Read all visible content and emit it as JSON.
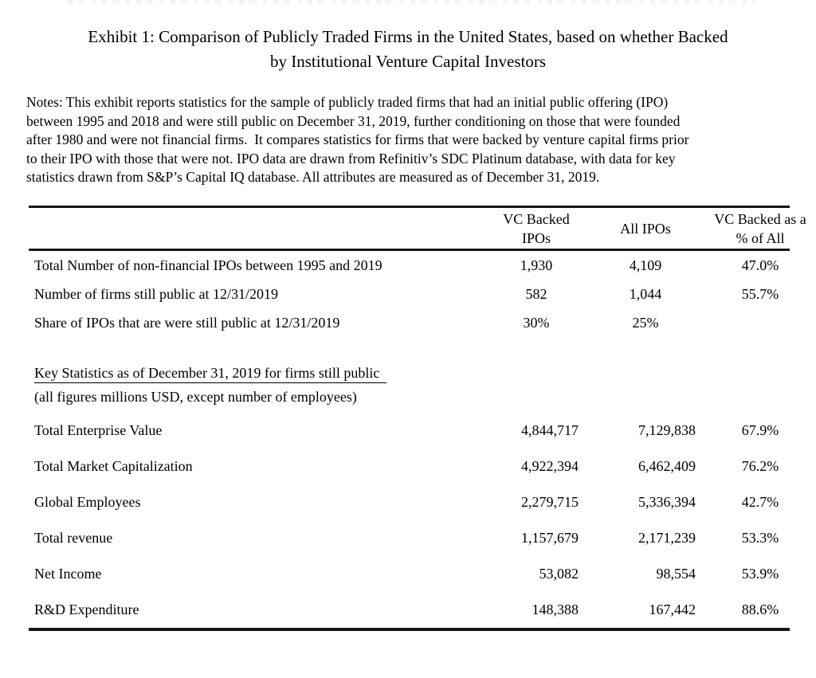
{
  "colors": {
    "text": "#000000",
    "rule": "#161616",
    "background": "#ffffff"
  },
  "page": {
    "title_line1": "Exhibit 1: Comparison of Publicly Traded Firms in the United States, based on whether Backed",
    "title_line2": "by Institutional Venture Capital Investors"
  },
  "notes": {
    "lines": [
      "Notes: This exhibit reports statistics for the sample of publicly traded firms that had an initial public offering (IPO)",
      "between 1995 and 2018 and were still public on December 31, 2019, further conditioning on those that were founded",
      "after 1980 and were not financial firms.  It compares statistics for firms that were backed by venture capital firms prior",
      "to their IPO with those that were not. IPO data are drawn from Refinitiv’s SDC Platinum database, with data for key",
      "statistics drawn from S&P’s Capital IQ database. All attributes are measured as of December 31, 2019."
    ]
  },
  "table": {
    "header": {
      "col2_line1": "VC Backed",
      "col2_line2": "IPOs",
      "col3": "All IPOs",
      "col4_line1": "VC Backed as a",
      "col4_line2": "% of All"
    },
    "summary_rows": [
      {
        "label": "Total Number of non-financial IPOs between 1995 and 2019",
        "vc": "1,930",
        "all": "4,109",
        "pct": "47.0%"
      },
      {
        "label": "Number of firms still public at 12/31/2019",
        "vc": "582",
        "all": "1,044",
        "pct": "55.7%"
      },
      {
        "label": "Share of IPOs that are were still public at 12/31/2019",
        "vc": "30%",
        "all": "25%",
        "pct": ""
      }
    ],
    "section": {
      "heading": "Key Statistics as of December 31, 2019 for firms still public",
      "subheading": "(all figures millions USD, except number of employees)"
    },
    "key_rows": [
      {
        "label": "Total Enterprise Value",
        "vc": "4,844,717",
        "all": "7,129,838",
        "pct": "67.9%"
      },
      {
        "label": "Total Market Capitalization",
        "vc": "4,922,394",
        "all": "6,462,409",
        "pct": "76.2%"
      },
      {
        "label": "Global Employees",
        "vc": "2,279,715",
        "all": "5,336,394",
        "pct": "42.7%"
      },
      {
        "label": "Total revenue",
        "vc": "1,157,679",
        "all": "2,171,239",
        "pct": "53.3%"
      },
      {
        "label": "Net Income",
        "vc": "53,082",
        "all": "98,554",
        "pct": "53.9%"
      },
      {
        "label": "R&D Expenditure",
        "vc": "148,388",
        "all": "167,442",
        "pct": "88.6%"
      }
    ]
  }
}
